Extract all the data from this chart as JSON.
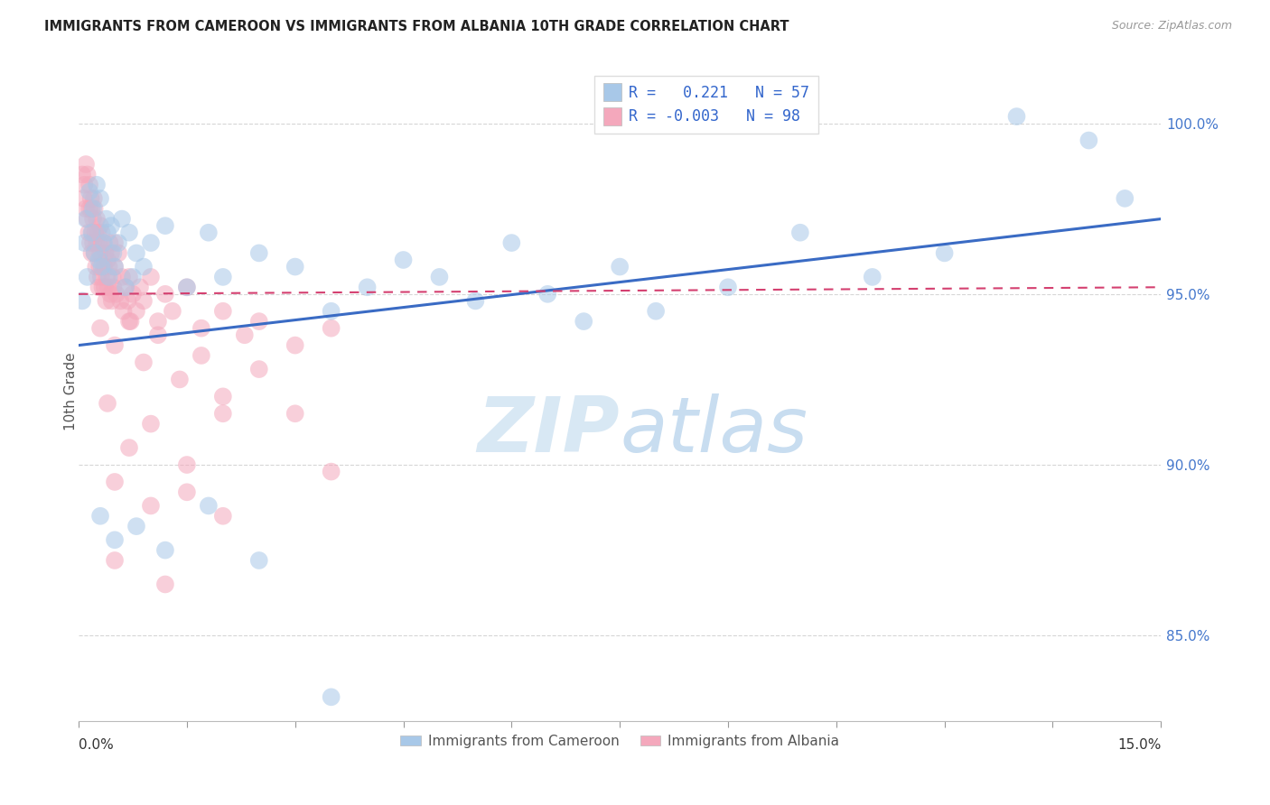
{
  "title": "IMMIGRANTS FROM CAMEROON VS IMMIGRANTS FROM ALBANIA 10TH GRADE CORRELATION CHART",
  "source": "Source: ZipAtlas.com",
  "ylabel": "10th Grade",
  "yticks": [
    85.0,
    90.0,
    95.0,
    100.0
  ],
  "ytick_labels": [
    "85.0%",
    "90.0%",
    "95.0%",
    "100.0%"
  ],
  "xmin": 0.0,
  "xmax": 15.0,
  "ymin": 82.5,
  "ymax": 101.8,
  "cameroon_color": "#a8c8e8",
  "albania_color": "#f4a8bc",
  "cameroon_line_color": "#3a6bc4",
  "albania_line_color": "#d44070",
  "watermark_color": "#d8e8f4",
  "cameroon_scatter": [
    [
      0.05,
      94.8
    ],
    [
      0.08,
      96.5
    ],
    [
      0.1,
      97.2
    ],
    [
      0.12,
      95.5
    ],
    [
      0.15,
      98.0
    ],
    [
      0.18,
      96.8
    ],
    [
      0.2,
      97.5
    ],
    [
      0.22,
      96.2
    ],
    [
      0.25,
      98.2
    ],
    [
      0.28,
      96.0
    ],
    [
      0.3,
      97.8
    ],
    [
      0.32,
      95.8
    ],
    [
      0.35,
      96.5
    ],
    [
      0.38,
      97.2
    ],
    [
      0.4,
      96.8
    ],
    [
      0.42,
      95.5
    ],
    [
      0.45,
      97.0
    ],
    [
      0.48,
      96.2
    ],
    [
      0.5,
      95.8
    ],
    [
      0.55,
      96.5
    ],
    [
      0.6,
      97.2
    ],
    [
      0.65,
      95.2
    ],
    [
      0.7,
      96.8
    ],
    [
      0.75,
      95.5
    ],
    [
      0.8,
      96.2
    ],
    [
      0.9,
      95.8
    ],
    [
      1.0,
      96.5
    ],
    [
      1.2,
      97.0
    ],
    [
      1.5,
      95.2
    ],
    [
      1.8,
      96.8
    ],
    [
      2.0,
      95.5
    ],
    [
      2.5,
      96.2
    ],
    [
      3.0,
      95.8
    ],
    [
      3.5,
      94.5
    ],
    [
      4.0,
      95.2
    ],
    [
      4.5,
      96.0
    ],
    [
      5.0,
      95.5
    ],
    [
      5.5,
      94.8
    ],
    [
      6.0,
      96.5
    ],
    [
      6.5,
      95.0
    ],
    [
      7.0,
      94.2
    ],
    [
      7.5,
      95.8
    ],
    [
      8.0,
      94.5
    ],
    [
      9.0,
      95.2
    ],
    [
      10.0,
      96.8
    ],
    [
      11.0,
      95.5
    ],
    [
      12.0,
      96.2
    ],
    [
      13.0,
      100.2
    ],
    [
      14.0,
      99.5
    ],
    [
      14.5,
      97.8
    ],
    [
      0.3,
      88.5
    ],
    [
      0.5,
      87.8
    ],
    [
      0.8,
      88.2
    ],
    [
      1.2,
      87.5
    ],
    [
      1.8,
      88.8
    ],
    [
      2.5,
      87.2
    ],
    [
      3.5,
      83.2
    ]
  ],
  "albania_scatter": [
    [
      0.05,
      98.5
    ],
    [
      0.07,
      97.8
    ],
    [
      0.08,
      98.2
    ],
    [
      0.1,
      97.5
    ],
    [
      0.1,
      98.8
    ],
    [
      0.12,
      97.2
    ],
    [
      0.12,
      98.5
    ],
    [
      0.14,
      96.8
    ],
    [
      0.15,
      97.5
    ],
    [
      0.15,
      98.2
    ],
    [
      0.16,
      96.5
    ],
    [
      0.17,
      97.8
    ],
    [
      0.18,
      96.2
    ],
    [
      0.18,
      97.5
    ],
    [
      0.19,
      96.8
    ],
    [
      0.2,
      97.2
    ],
    [
      0.2,
      96.5
    ],
    [
      0.21,
      97.8
    ],
    [
      0.22,
      96.2
    ],
    [
      0.22,
      97.5
    ],
    [
      0.23,
      96.8
    ],
    [
      0.24,
      95.8
    ],
    [
      0.25,
      96.5
    ],
    [
      0.25,
      97.2
    ],
    [
      0.26,
      95.5
    ],
    [
      0.27,
      96.8
    ],
    [
      0.28,
      95.2
    ],
    [
      0.28,
      96.5
    ],
    [
      0.29,
      95.8
    ],
    [
      0.3,
      96.2
    ],
    [
      0.3,
      97.0
    ],
    [
      0.31,
      95.5
    ],
    [
      0.32,
      96.8
    ],
    [
      0.33,
      95.2
    ],
    [
      0.34,
      96.5
    ],
    [
      0.35,
      95.8
    ],
    [
      0.36,
      95.2
    ],
    [
      0.37,
      96.2
    ],
    [
      0.38,
      94.8
    ],
    [
      0.39,
      95.5
    ],
    [
      0.4,
      96.0
    ],
    [
      0.41,
      95.2
    ],
    [
      0.42,
      95.8
    ],
    [
      0.43,
      96.5
    ],
    [
      0.44,
      95.0
    ],
    [
      0.45,
      96.2
    ],
    [
      0.46,
      94.8
    ],
    [
      0.47,
      95.5
    ],
    [
      0.48,
      95.2
    ],
    [
      0.5,
      95.8
    ],
    [
      0.5,
      96.5
    ],
    [
      0.52,
      95.0
    ],
    [
      0.55,
      96.2
    ],
    [
      0.58,
      94.8
    ],
    [
      0.6,
      95.5
    ],
    [
      0.62,
      94.5
    ],
    [
      0.65,
      95.2
    ],
    [
      0.68,
      94.8
    ],
    [
      0.7,
      95.5
    ],
    [
      0.72,
      94.2
    ],
    [
      0.75,
      95.0
    ],
    [
      0.8,
      94.5
    ],
    [
      0.85,
      95.2
    ],
    [
      0.9,
      94.8
    ],
    [
      1.0,
      95.5
    ],
    [
      1.1,
      94.2
    ],
    [
      1.2,
      95.0
    ],
    [
      1.3,
      94.5
    ],
    [
      1.5,
      95.2
    ],
    [
      1.7,
      94.0
    ],
    [
      2.0,
      94.5
    ],
    [
      2.3,
      93.8
    ],
    [
      2.5,
      94.2
    ],
    [
      3.0,
      93.5
    ],
    [
      3.5,
      94.0
    ],
    [
      0.3,
      94.0
    ],
    [
      0.5,
      93.5
    ],
    [
      0.7,
      94.2
    ],
    [
      0.9,
      93.0
    ],
    [
      1.1,
      93.8
    ],
    [
      1.4,
      92.5
    ],
    [
      1.7,
      93.2
    ],
    [
      2.0,
      92.0
    ],
    [
      2.5,
      92.8
    ],
    [
      3.0,
      91.5
    ],
    [
      0.4,
      91.8
    ],
    [
      0.7,
      90.5
    ],
    [
      1.0,
      91.2
    ],
    [
      1.5,
      90.0
    ],
    [
      2.0,
      91.5
    ],
    [
      0.5,
      89.5
    ],
    [
      1.0,
      88.8
    ],
    [
      1.5,
      89.2
    ],
    [
      2.0,
      88.5
    ],
    [
      3.5,
      89.8
    ],
    [
      0.5,
      87.2
    ],
    [
      1.2,
      86.5
    ]
  ],
  "cam_line_x0": 0.0,
  "cam_line_y0": 93.5,
  "cam_line_x1": 15.0,
  "cam_line_y1": 97.2,
  "alb_line_x0": 0.0,
  "alb_line_y0": 95.0,
  "alb_line_x1": 15.0,
  "alb_line_y1": 95.2
}
